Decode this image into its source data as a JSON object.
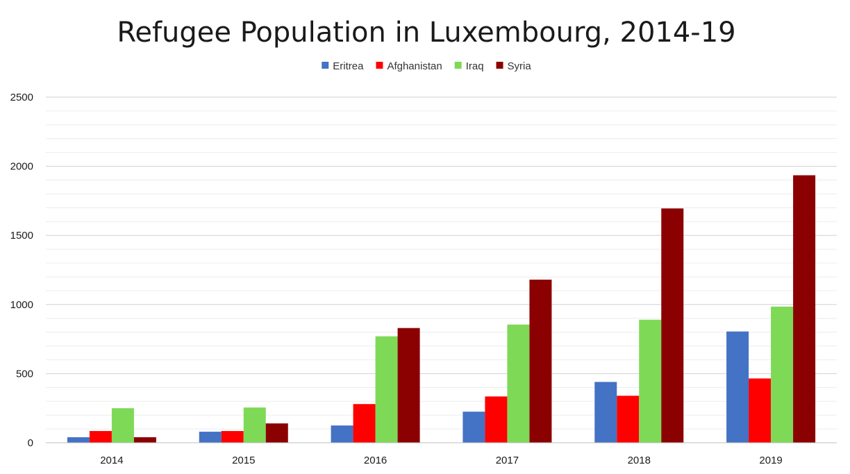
{
  "chart_data": {
    "type": "bar",
    "title": "Refugee Population in Luxembourg, 2014-19",
    "xlabel": "",
    "ylabel": "",
    "categories": [
      "2014",
      "2015",
      "2016",
      "2017",
      "2018",
      "2019"
    ],
    "series": [
      {
        "name": "Eritrea",
        "color": "#4472C4",
        "values": [
          40,
          80,
          125,
          225,
          440,
          805
        ]
      },
      {
        "name": "Afghanistan",
        "color": "#FF0000",
        "values": [
          85,
          85,
          280,
          335,
          340,
          465
        ]
      },
      {
        "name": "Iraq",
        "color": "#7ED957",
        "values": [
          250,
          255,
          770,
          855,
          890,
          985
        ]
      },
      {
        "name": "Syria",
        "color": "#8B0000",
        "values": [
          40,
          140,
          830,
          1180,
          1695,
          1935
        ]
      }
    ],
    "ylim": [
      0,
      2500
    ],
    "yticks": [
      0,
      500,
      1000,
      1500,
      2000,
      2500
    ],
    "grid": true,
    "legend_position": "top-center"
  }
}
